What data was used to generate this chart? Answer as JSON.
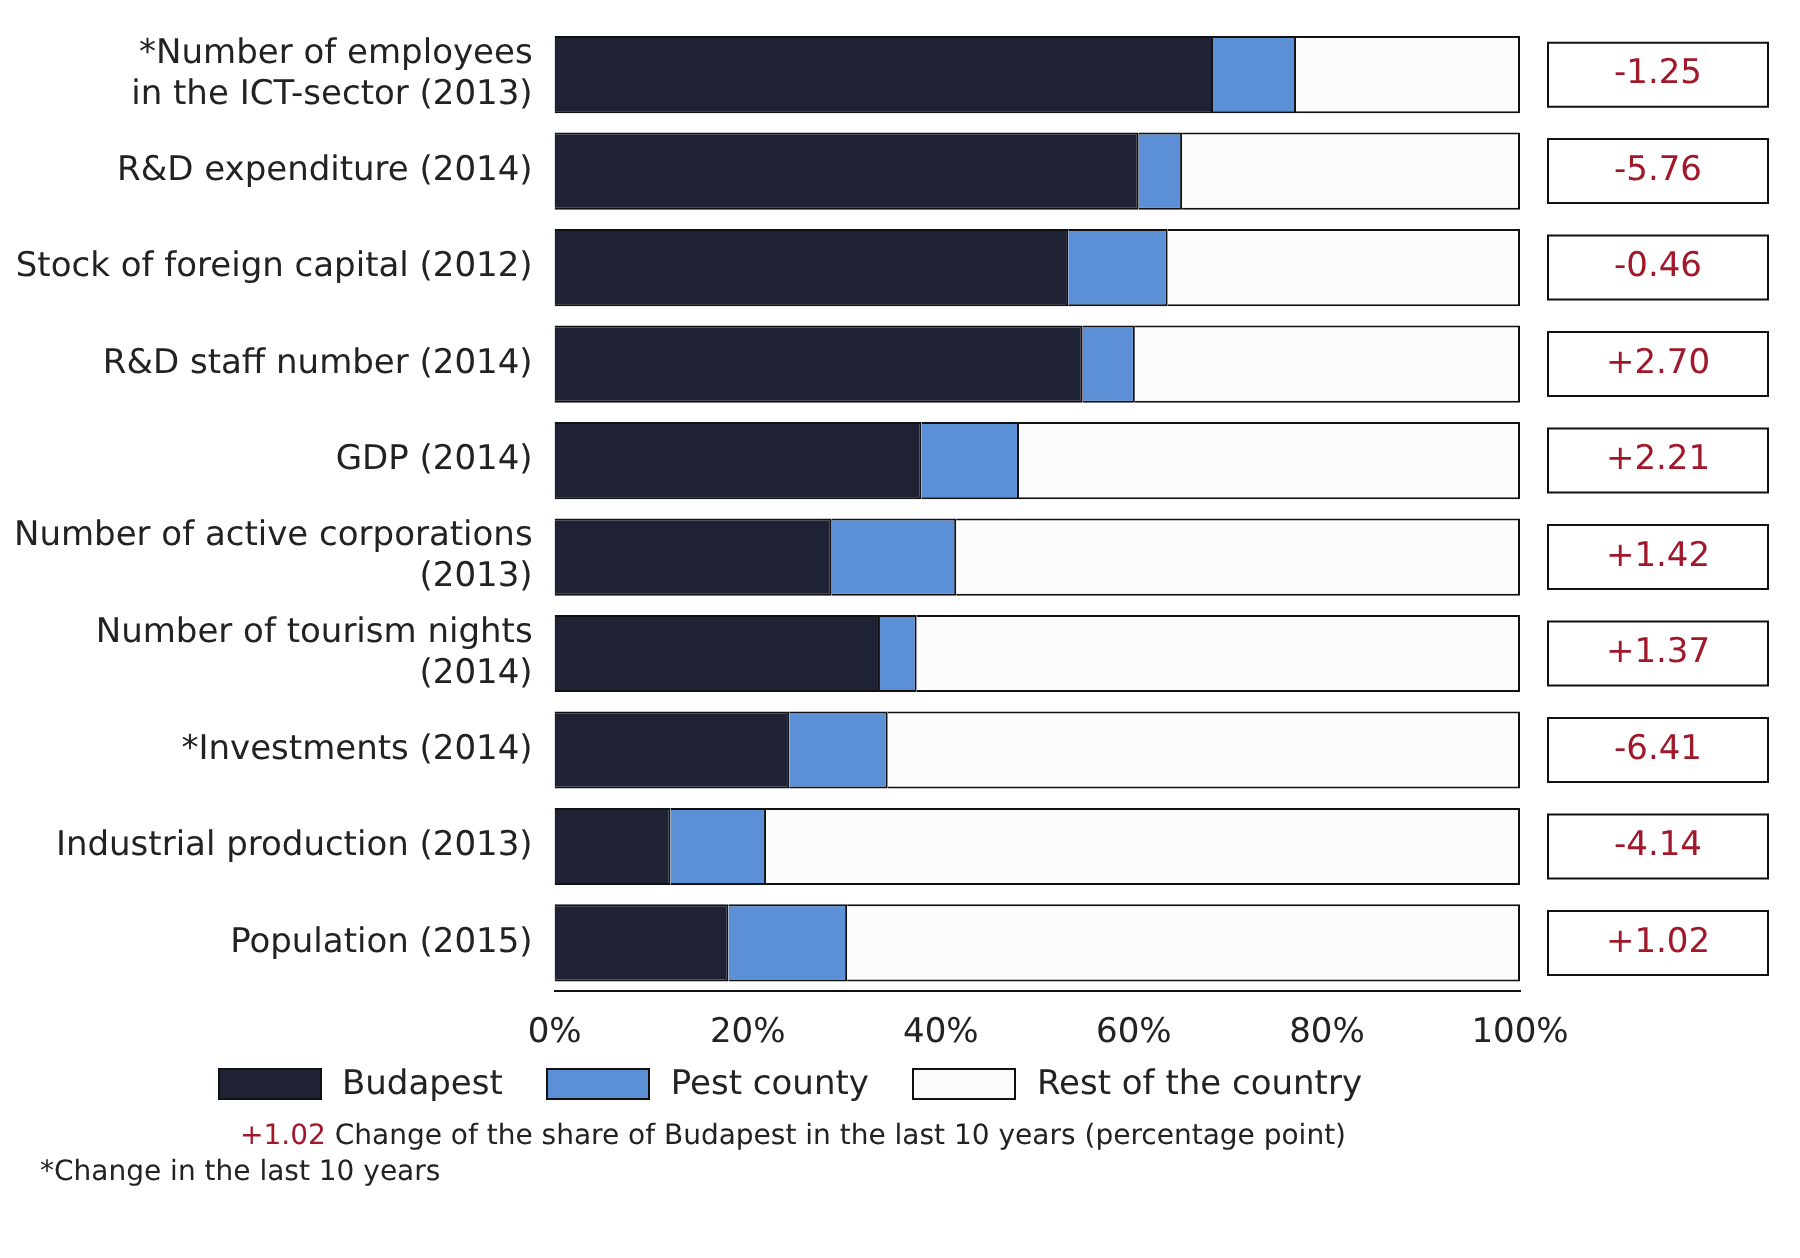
{
  "chart_data": {
    "type": "bar",
    "orientation": "horizontal",
    "stacked": true,
    "categories": [
      "*Number of employees\nin the ICT-sector (2013)",
      "R&D expenditure (2014)",
      "Stock of foreign capital (2012)",
      "R&D staff number (2014)",
      "GDP (2014)",
      "Number of active corporations\n(2013)",
      "Number of tourism nights\n(2014)",
      "*Investments (2014)",
      "Industrial production (2013)",
      "Population (2015)"
    ],
    "series": [
      {
        "name": "Budapest",
        "color": "#1f2235",
        "values": [
          68.2,
          60.5,
          53.2,
          54.7,
          38.0,
          28.7,
          33.7,
          24.3,
          12.0,
          18.0
        ]
      },
      {
        "name": "Pest county",
        "color": "#5b8fd6",
        "values": [
          8.6,
          4.5,
          10.3,
          5.4,
          10.1,
          12.9,
          3.8,
          10.2,
          9.9,
          12.3
        ]
      },
      {
        "name": "Rest of the country",
        "color": "#fcfcfc",
        "values": [
          23.2,
          35.0,
          36.5,
          39.9,
          51.9,
          58.4,
          62.5,
          65.5,
          78.1,
          69.7
        ]
      }
    ],
    "xlim": [
      0,
      100
    ],
    "xticks": [
      {
        "value": 0,
        "label": "0%"
      },
      {
        "value": 20,
        "label": "20%"
      },
      {
        "value": 40,
        "label": "40%"
      },
      {
        "value": 60,
        "label": "60%"
      },
      {
        "value": 80,
        "label": "80%"
      },
      {
        "value": 100,
        "label": "100%"
      }
    ],
    "grid": false,
    "legend": "bottom",
    "annotations": [
      "-1.25",
      "-5.76",
      "-0.46",
      "+2.70",
      "+2.21",
      "+1.42",
      "+1.37",
      "-6.41",
      "-4.14",
      "+1.02",
      "+1.02 Change of the share of Budapest in the last 10 years (percentage point)",
      "*Change in the last 10 years"
    ]
  }
}
